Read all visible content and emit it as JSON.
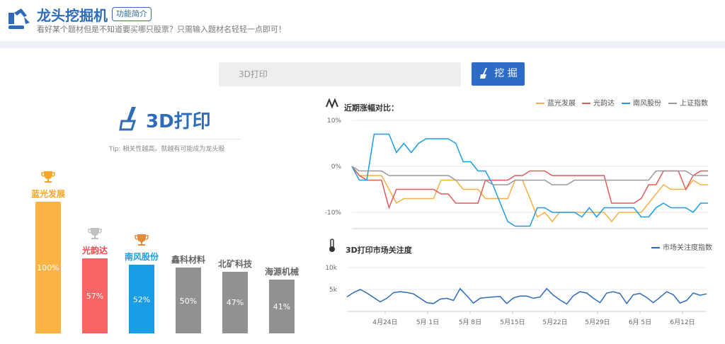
{
  "header": {
    "title": "龙头挖掘机",
    "badge": "功能简介",
    "subtitle": "看好某个题材但是不知道要买哪只股票？只需输入题材名轻轻一点即可！"
  },
  "search": {
    "placeholder": "3D打印",
    "button_label": "挖 掘"
  },
  "topic": {
    "name": "3D打印",
    "tip": "Tip: 相关性越高，就越有可能成为龙头股"
  },
  "ranking": [
    {
      "name": "蓝光发展",
      "pct": "100%",
      "value": 100,
      "color": "#fbb444",
      "label_color": "#f5a623",
      "trophy": "gold"
    },
    {
      "name": "光韵达",
      "pct": "57%",
      "value": 57,
      "color": "#fb6464",
      "label_color": "#e84c4c",
      "trophy": "silver"
    },
    {
      "name": "南风股份",
      "pct": "52%",
      "value": 52,
      "color": "#1a9de6",
      "label_color": "#1a9de6",
      "trophy": "bronze"
    },
    {
      "name": "鑫科材料",
      "pct": "50%",
      "value": 50,
      "color": "#919191",
      "label_color": "#666666",
      "trophy": ""
    },
    {
      "name": "北矿科技",
      "pct": "47%",
      "value": 47,
      "color": "#919191",
      "label_color": "#666666",
      "trophy": ""
    },
    {
      "name": "海源机械",
      "pct": "41%",
      "value": 41,
      "color": "#919191",
      "label_color": "#666666",
      "trophy": ""
    }
  ],
  "chart_data": [
    {
      "type": "line",
      "title": "近期涨幅对比：",
      "ylabel": "",
      "yticks": [
        "10%",
        "0%",
        "-10%"
      ],
      "ylim": [
        -13,
        11
      ],
      "series": [
        {
          "name": "蓝光发展",
          "color": "#f5b041",
          "values": [
            0,
            -2,
            -2,
            -2,
            -2,
            -5,
            -8,
            -7,
            -7,
            -7,
            -7,
            -7,
            -3,
            -3,
            -3,
            -5,
            -5,
            -5,
            -7,
            -7,
            -7,
            -7,
            -3,
            -3,
            -7,
            -11,
            -10,
            -12,
            -10,
            -10,
            -10,
            -10,
            -10,
            -10,
            -10,
            -12,
            -10,
            -10,
            -10,
            -10,
            -8,
            -6,
            -4,
            -5,
            -5,
            -5,
            -3,
            -4,
            -4
          ]
        },
        {
          "name": "光韵达",
          "color": "#e05a5a",
          "values": [
            0,
            -2,
            -3,
            -3,
            -3,
            -9,
            -5,
            -5,
            -5,
            -5,
            -5,
            -5,
            -6,
            -6,
            -8,
            -8,
            -8,
            -8,
            -3,
            -3,
            -3,
            -3,
            -2,
            -2,
            -1,
            -1,
            -1,
            -2,
            -2,
            -2,
            -2,
            -2,
            -2,
            -2,
            -2,
            -8,
            -8,
            -8,
            -8,
            -7,
            -4,
            -4,
            -1,
            -1,
            -1,
            -5,
            -2,
            -1,
            -1
          ]
        },
        {
          "name": "南风股份",
          "color": "#1a9de6",
          "values": [
            0,
            -3,
            -3,
            7,
            7,
            7,
            3,
            5,
            3,
            5,
            6,
            6,
            6,
            6,
            5,
            1,
            1,
            -1,
            -1,
            -4,
            -8,
            -12,
            -13,
            -13,
            -13,
            -9,
            -9,
            -10,
            -10,
            -10,
            -10,
            -11,
            -9,
            -11,
            -9,
            -9,
            -9,
            -9,
            -9,
            -11,
            -11,
            -9,
            -8,
            -9,
            -9,
            -9,
            -10,
            -8,
            -8
          ]
        },
        {
          "name": "上证指数",
          "color": "#999999",
          "values": [
            0,
            -1,
            -1,
            -1,
            -1,
            -2,
            -2,
            -2,
            -2,
            -2,
            -2,
            -2,
            -2,
            -2,
            -3,
            -3,
            -3,
            -3,
            -3,
            -4,
            -4,
            -4,
            -3,
            -3,
            -3,
            -3,
            -3,
            -4,
            -4,
            -4,
            -3,
            -3,
            -3,
            -3,
            -3,
            -3,
            -3,
            -3,
            -3,
            -3,
            -3,
            -1,
            -1,
            -1,
            -1,
            -1,
            -2,
            -2,
            -2
          ]
        }
      ]
    },
    {
      "type": "line",
      "title": "3D打印市场关注度",
      "yticks": [
        "10k",
        "5k"
      ],
      "ylim": [
        0,
        10000
      ],
      "x_labels": [
        "4月24日",
        "5月 1日",
        "5月 8日",
        "5月15日",
        "5月22日",
        "5月29日",
        "6月 5日",
        "6月12日"
      ],
      "series": [
        {
          "name": "市场关注度指数",
          "color": "#2e6bb8",
          "values": [
            3300,
            4300,
            5000,
            4200,
            3200,
            2200,
            3000,
            4300,
            4500,
            4300,
            4000,
            3000,
            2000,
            1800,
            2800,
            3000,
            2500,
            5200,
            3600,
            1900,
            3000,
            3200,
            3300,
            3400,
            1800,
            3100,
            3500,
            3500,
            3000,
            3300,
            5200,
            3700,
            2600,
            1700,
            3600,
            4500,
            4200,
            3000,
            2000,
            4200,
            4500,
            4100,
            1800,
            3800,
            4100,
            3200,
            2000,
            3200,
            4500,
            3800,
            1900,
            2500,
            4200,
            3700,
            4000
          ]
        }
      ]
    }
  ]
}
